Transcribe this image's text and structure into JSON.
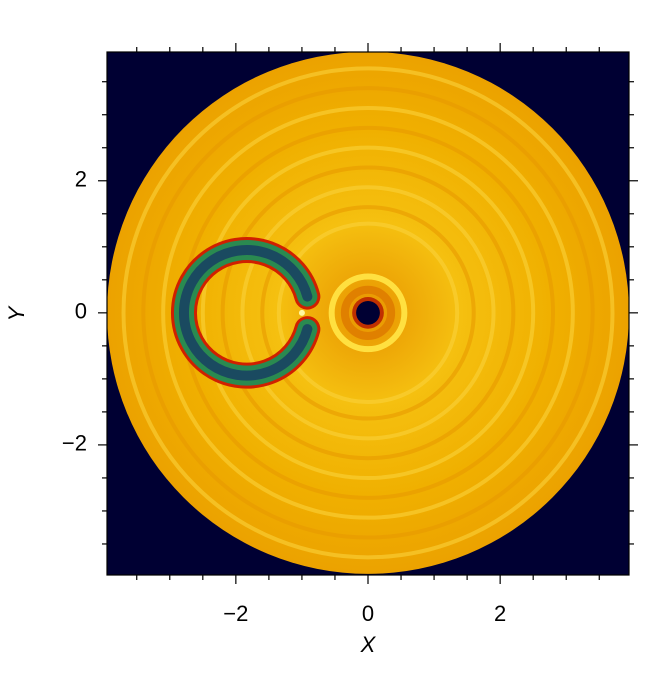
{
  "chart_data": {
    "type": "image",
    "xlabel": "X",
    "ylabel": "Y",
    "xlim": [
      -3.95,
      3.95
    ],
    "ylim": [
      -3.97,
      3.95
    ],
    "xticks": [
      {
        "value": -2,
        "label": "−2"
      },
      0,
      2
    ],
    "yticks": [
      {
        "value": -2,
        "label": "−2"
      },
      0,
      2
    ],
    "xminorticks": [
      -3.5,
      -3,
      -2.5,
      -1.5,
      -1,
      -0.5,
      0.5,
      1,
      1.5,
      2.5,
      3,
      3.5
    ],
    "yminorticks": [
      -3.5,
      -3,
      -2.5,
      -1.5,
      -1,
      -0.5,
      0.5,
      1,
      1.5,
      2.5,
      3,
      3.5
    ],
    "background": "#000033"
  }
}
